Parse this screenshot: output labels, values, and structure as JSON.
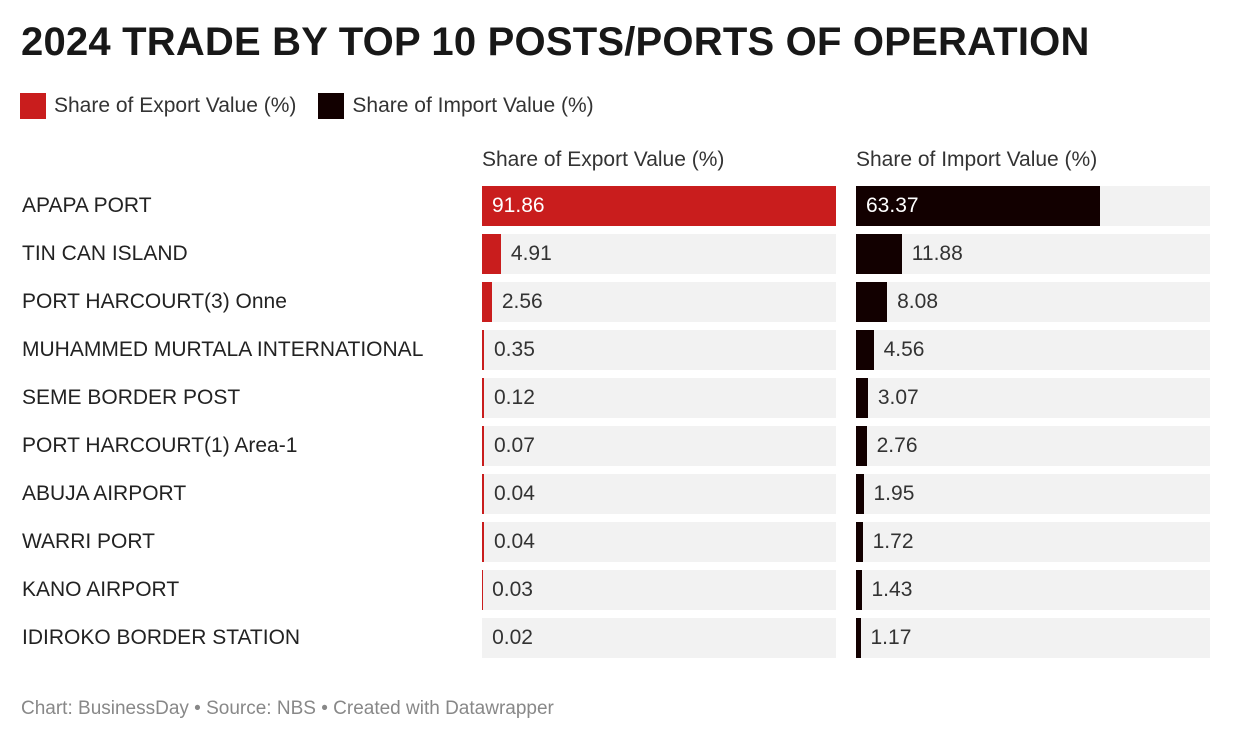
{
  "chart_data": {
    "type": "bar",
    "title": "2024 TRADE BY TOP 10 POSTS/PORTS OF OPERATION",
    "legend": [
      {
        "label": "Share of Export Value (%)",
        "color": "#c91d1d"
      },
      {
        "label": "Share of Import Value (%)",
        "color": "#120000"
      }
    ],
    "categories": [
      "APAPA PORT",
      "TIN CAN ISLAND",
      "PORT HARCOURT(3) Onne",
      "MUHAMMED MURTALA INTERNATIONAL",
      "SEME BORDER POST",
      "PORT HARCOURT(1) Area-1",
      "ABUJA AIRPORT",
      "WARRI PORT",
      "KANO AIRPORT",
      "IDIROKO BORDER STATION"
    ],
    "series": [
      {
        "name": "Share of Export Value (%)",
        "values": [
          "91.86",
          "4.91",
          "2.56",
          "0.35",
          "0.12",
          "0.07",
          "0.04",
          "0.04",
          "0.03",
          "0.02"
        ]
      },
      {
        "name": "Share of Import Value (%)",
        "values": [
          "63.37",
          "11.88",
          "8.08",
          "4.56",
          "3.07",
          "2.76",
          "1.95",
          "1.72",
          "1.43",
          "1.17"
        ]
      }
    ],
    "xlim": [
      0,
      91.86
    ],
    "legend_placement": "top-left"
  },
  "footer": "Chart: BusinessDay • Source: NBS • Created with Datawrapper"
}
